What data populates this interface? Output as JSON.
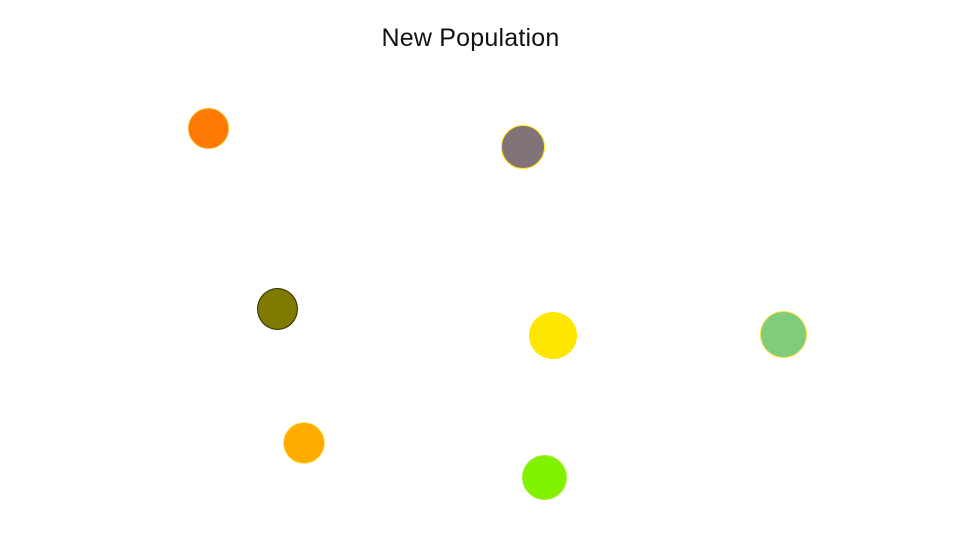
{
  "title": "New Population",
  "population": [
    {
      "id": "a",
      "fill": "#ff7a05",
      "stroke": "#f2b31e"
    },
    {
      "id": "b",
      "fill": "#827378",
      "stroke": "#ffe400"
    },
    {
      "id": "c",
      "fill": "#807a00",
      "stroke": "#2a2a00"
    },
    {
      "id": "d",
      "fill": "#ffe600",
      "stroke": "#ffe600"
    },
    {
      "id": "e",
      "fill": "#80cc7a",
      "stroke": "#ffe14a"
    },
    {
      "id": "f",
      "fill": "#ffab00",
      "stroke": "#ffe870"
    },
    {
      "id": "g",
      "fill": "#80f200",
      "stroke": "#a8ee40"
    }
  ]
}
